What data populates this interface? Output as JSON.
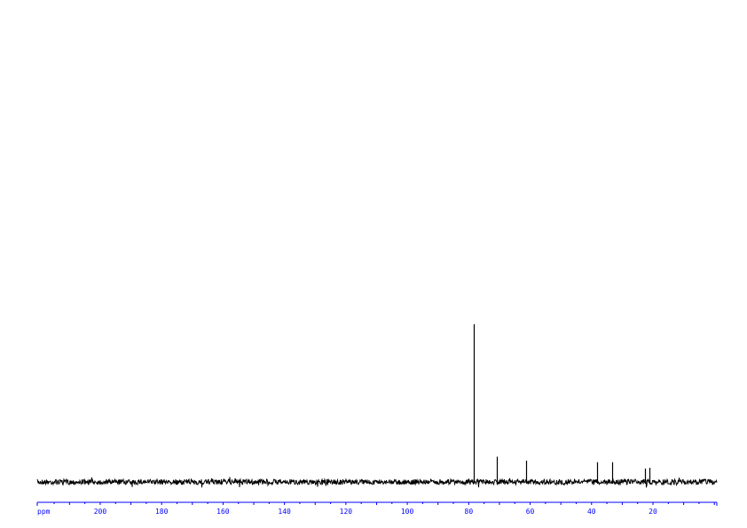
{
  "chart_data": {
    "type": "line",
    "title": "",
    "xlabel": "ppm",
    "ylabel": "",
    "xlim": [
      220.5,
      -0.8
    ],
    "x_reversed": true,
    "grid": false,
    "axis_color": "#0000ff",
    "line_color": "#000000",
    "x_ticks": [
      200,
      180,
      160,
      140,
      120,
      100,
      80,
      60,
      40,
      20
    ],
    "peaks": [
      {
        "ppm": 78.4,
        "intensity": 1.0
      },
      {
        "ppm": 70.9,
        "intensity": 0.16
      },
      {
        "ppm": 61.3,
        "intensity": 0.135
      },
      {
        "ppm": 38.2,
        "intensity": 0.125
      },
      {
        "ppm": 33.3,
        "intensity": 0.125
      },
      {
        "ppm": 22.6,
        "intensity": 0.085
      },
      {
        "ppm": 21.2,
        "intensity": 0.09
      }
    ]
  }
}
